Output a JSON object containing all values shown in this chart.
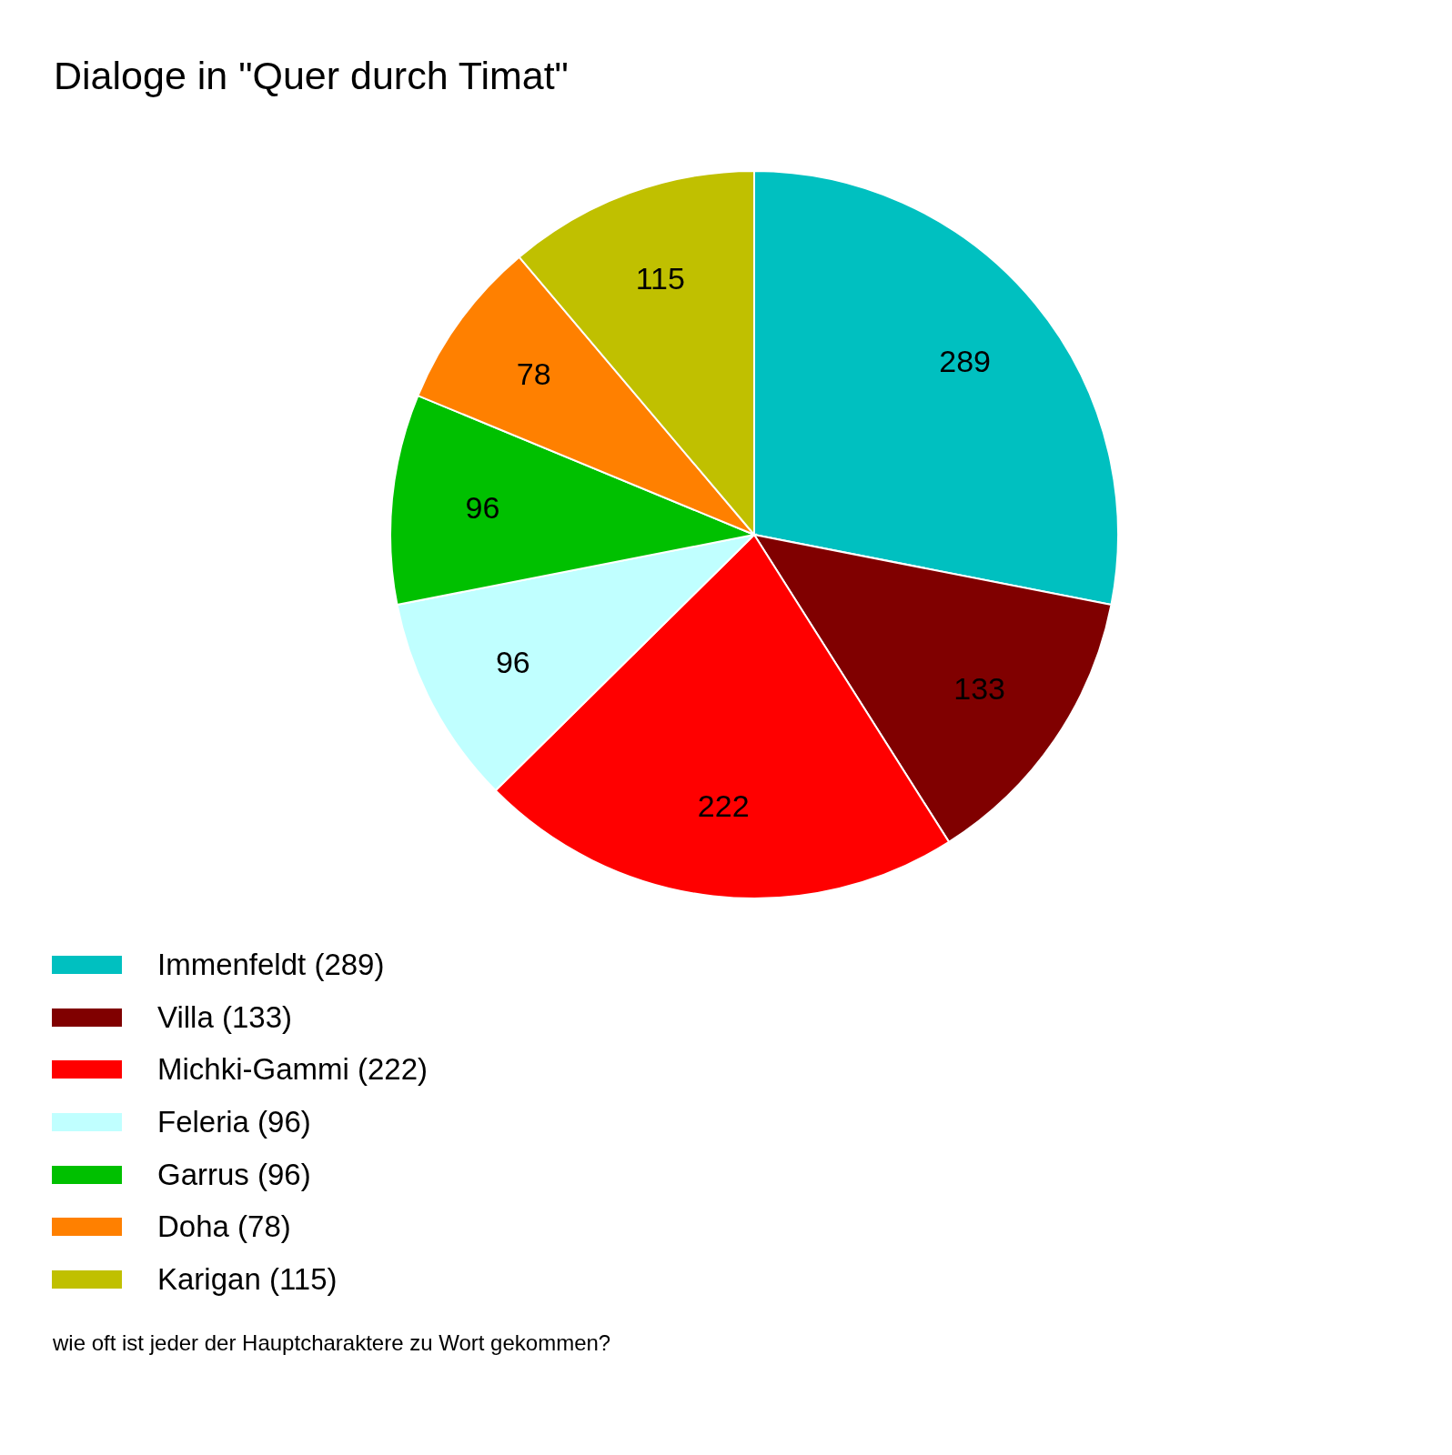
{
  "chart_data": {
    "type": "pie",
    "title": "Dialoge in \"Quer durch Timat\"",
    "categories": [
      "Immenfeldt (289)",
      "Villa (133)",
      "Michki-Gammi (222)",
      "Feleria (96)",
      "Garrus (96)",
      "Doha (78)",
      "Karigan (115)"
    ],
    "values": [
      289,
      133,
      222,
      96,
      96,
      78,
      115
    ],
    "colors": [
      "#00c0c0",
      "#800000",
      "#ff0000",
      "#c0ffff",
      "#00c000",
      "#ff8000",
      "#c0c000"
    ],
    "data_labels": true,
    "legend": "bottom left",
    "annotations": [
      "wie oft ist jeder der Hauptcharaktere zu Wort gekommen?"
    ]
  }
}
